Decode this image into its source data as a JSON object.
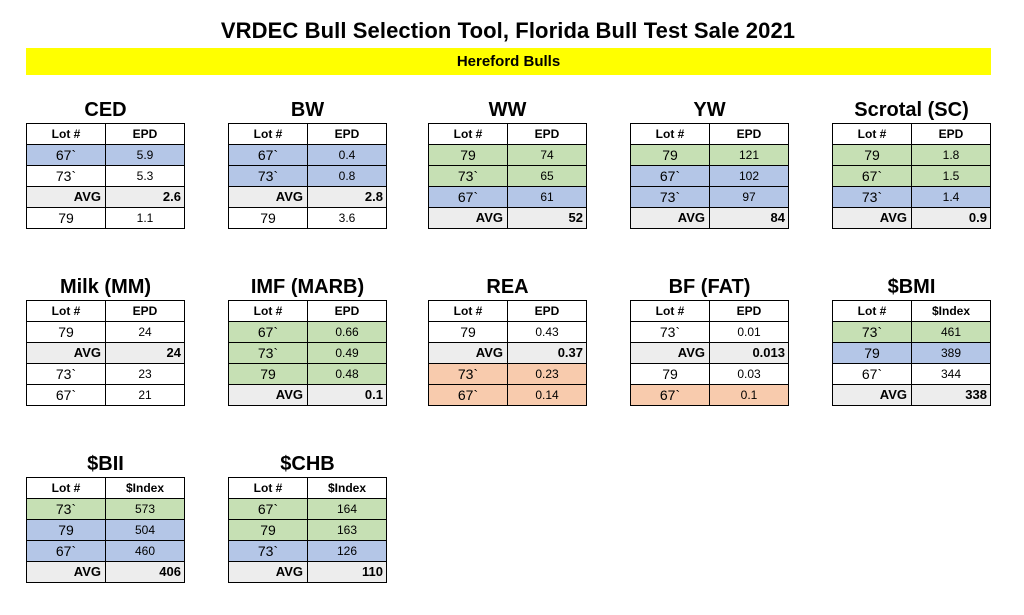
{
  "title": "VRDEC Bull Selection Tool, Florida Bull Test Sale 2021",
  "subtitle": "Hereford Bulls",
  "colors": {
    "green": "#c6e0b4",
    "blue": "#b4c6e7",
    "orange": "#f8cbad",
    "avg": "#ededed",
    "banner": "#ffff00"
  },
  "tables": [
    {
      "id": "ced",
      "title": "CED",
      "headers": [
        "Lot #",
        "EPD"
      ],
      "rows": [
        {
          "lot": "67`",
          "val": "5.9",
          "color": "blue"
        },
        {
          "lot": "73`",
          "val": "5.3",
          "color": "white"
        },
        {
          "avg": true,
          "lot": "AVG",
          "val": "2.6"
        },
        {
          "lot": "79",
          "val": "1.1",
          "color": "white"
        }
      ]
    },
    {
      "id": "bw",
      "title": "BW",
      "headers": [
        "Lot #",
        "EPD"
      ],
      "rows": [
        {
          "lot": "67`",
          "val": "0.4",
          "color": "blue"
        },
        {
          "lot": "73`",
          "val": "0.8",
          "color": "blue"
        },
        {
          "avg": true,
          "lot": "AVG",
          "val": "2.8"
        },
        {
          "lot": "79",
          "val": "3.6",
          "color": "white"
        }
      ]
    },
    {
      "id": "ww",
      "title": "WW",
      "headers": [
        "Lot #",
        "EPD"
      ],
      "rows": [
        {
          "lot": "79",
          "val": "74",
          "color": "green"
        },
        {
          "lot": "73`",
          "val": "65",
          "color": "green"
        },
        {
          "lot": "67`",
          "val": "61",
          "color": "blue"
        },
        {
          "avg": true,
          "lot": "AVG",
          "val": "52"
        }
      ]
    },
    {
      "id": "yw",
      "title": "YW",
      "headers": [
        "Lot #",
        "EPD"
      ],
      "rows": [
        {
          "lot": "79",
          "val": "121",
          "color": "green"
        },
        {
          "lot": "67`",
          "val": "102",
          "color": "blue"
        },
        {
          "lot": "73`",
          "val": "97",
          "color": "blue"
        },
        {
          "avg": true,
          "lot": "AVG",
          "val": "84"
        }
      ]
    },
    {
      "id": "sc",
      "title": "Scrotal (SC)",
      "headers": [
        "Lot #",
        "EPD"
      ],
      "rows": [
        {
          "lot": "79",
          "val": "1.8",
          "color": "green"
        },
        {
          "lot": "67`",
          "val": "1.5",
          "color": "green"
        },
        {
          "lot": "73`",
          "val": "1.4",
          "color": "blue"
        },
        {
          "avg": true,
          "lot": "AVG",
          "val": "0.9"
        }
      ]
    },
    {
      "id": "milk",
      "title": "Milk (MM)",
      "headers": [
        "Lot #",
        "EPD"
      ],
      "rows": [
        {
          "lot": "79",
          "val": "24",
          "color": "white"
        },
        {
          "avg": true,
          "lot": "AVG",
          "val": "24"
        },
        {
          "lot": "73`",
          "val": "23",
          "color": "white"
        },
        {
          "lot": "67`",
          "val": "21",
          "color": "white"
        }
      ]
    },
    {
      "id": "imf",
      "title": "IMF (MARB)",
      "headers": [
        "Lot #",
        "EPD"
      ],
      "rows": [
        {
          "lot": "67`",
          "val": "0.66",
          "color": "green"
        },
        {
          "lot": "73`",
          "val": "0.49",
          "color": "green"
        },
        {
          "lot": "79",
          "val": "0.48",
          "color": "green"
        },
        {
          "avg": true,
          "lot": "AVG",
          "val": "0.1"
        }
      ]
    },
    {
      "id": "rea",
      "title": "REA",
      "headers": [
        "Lot #",
        "EPD"
      ],
      "rows": [
        {
          "lot": "79",
          "val": "0.43",
          "color": "white"
        },
        {
          "avg": true,
          "lot": "AVG",
          "val": "0.37"
        },
        {
          "lot": "73`",
          "val": "0.23",
          "color": "orange"
        },
        {
          "lot": "67`",
          "val": "0.14",
          "color": "orange"
        }
      ]
    },
    {
      "id": "bf",
      "title": "BF (FAT)",
      "headers": [
        "Lot #",
        "EPD"
      ],
      "rows": [
        {
          "lot": "73`",
          "val": "0.01",
          "color": "white"
        },
        {
          "avg": true,
          "lot": "AVG",
          "val": "0.013"
        },
        {
          "lot": "79",
          "val": "0.03",
          "color": "white"
        },
        {
          "lot": "67`",
          "val": "0.1",
          "color": "orange"
        }
      ]
    },
    {
      "id": "bmi",
      "title": "$BMI",
      "headers": [
        "Lot #",
        "$Index"
      ],
      "rows": [
        {
          "lot": "73`",
          "val": "461",
          "color": "green"
        },
        {
          "lot": "79",
          "val": "389",
          "color": "blue"
        },
        {
          "lot": "67`",
          "val": "344",
          "color": "white"
        },
        {
          "avg": true,
          "lot": "AVG",
          "val": "338"
        }
      ]
    },
    {
      "id": "bii",
      "title": "$BII",
      "headers": [
        "Lot #",
        "$Index"
      ],
      "rows": [
        {
          "lot": "73`",
          "val": "573",
          "color": "green"
        },
        {
          "lot": "79",
          "val": "504",
          "color": "blue"
        },
        {
          "lot": "67`",
          "val": "460",
          "color": "blue"
        },
        {
          "avg": true,
          "lot": "AVG",
          "val": "406"
        }
      ]
    },
    {
      "id": "chb",
      "title": "$CHB",
      "headers": [
        "Lot #",
        "$Index"
      ],
      "rows": [
        {
          "lot": "67`",
          "val": "164",
          "color": "green"
        },
        {
          "lot": "79",
          "val": "163",
          "color": "green"
        },
        {
          "lot": "73`",
          "val": "126",
          "color": "blue"
        },
        {
          "avg": true,
          "lot": "AVG",
          "val": "110"
        }
      ]
    }
  ]
}
